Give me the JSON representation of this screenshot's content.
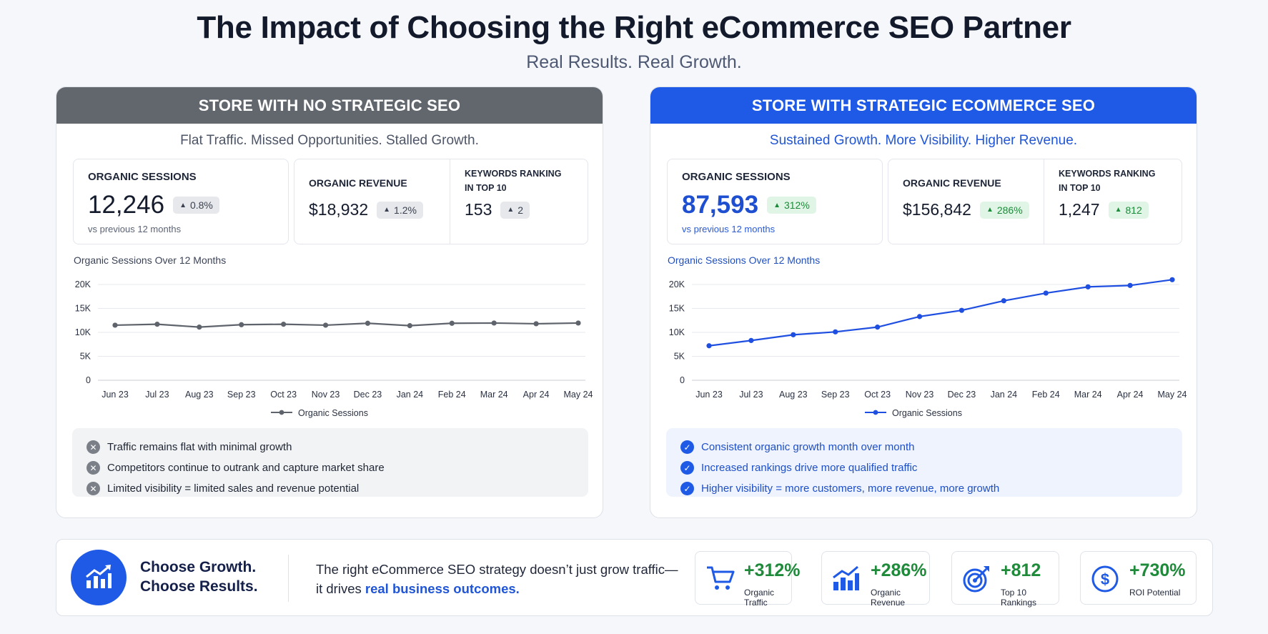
{
  "title": "The Impact of Choosing the Right eCommerce SEO Partner",
  "subtitle": "Real Results. Real Growth.",
  "left": {
    "header": "STORE WITH NO STRATEGIC SEO",
    "tagline": "Flat Traffic. Missed Opportunities. Stalled Growth.",
    "kpis": {
      "sessions": {
        "label": "ORGANIC SESSIONS",
        "value": "12,246",
        "change": "0.8%",
        "note": "vs previous 12 months"
      },
      "revenue": {
        "label": "ORGANIC REVENUE",
        "value": "$18,932",
        "change": "1.2%"
      },
      "keywords": {
        "label_line1": "KEYWORDS RANKING",
        "label_line2": "IN TOP 10",
        "value": "153",
        "change": "2"
      }
    },
    "chart_title": "Organic Sessions Over 12 Months",
    "legend": "Organic Sessions",
    "notes": [
      "Traffic remains flat with minimal growth",
      "Competitors continue to outrank and capture market share",
      "Limited visibility = limited sales and revenue potential"
    ]
  },
  "right": {
    "header": "STORE WITH STRATEGIC ECOMMERCE SEO",
    "tagline": "Sustained Growth. More Visibility. Higher Revenue.",
    "kpis": {
      "sessions": {
        "label": "ORGANIC SESSIONS",
        "value": "87,593",
        "change": "312%",
        "note": "vs previous 12 months"
      },
      "revenue": {
        "label": "ORGANIC REVENUE",
        "value": "$156,842",
        "change": "286%"
      },
      "keywords": {
        "label_line1": "KEYWORDS RANKING",
        "label_line2": "IN TOP 10",
        "value": "1,247",
        "change": "812"
      }
    },
    "chart_title": "Organic Sessions Over 12 Months",
    "legend": "Organic Sessions",
    "notes": [
      "Consistent organic growth month over month",
      "Increased rankings drive more qualified traffic",
      "Higher visibility = more customers, more revenue, more growth"
    ]
  },
  "footer": {
    "headline_1": "Choose Growth.",
    "headline_2": "Choose Results.",
    "pitch_1": "The right eCommerce SEO strategy doesn’t just grow traffic—",
    "pitch_2a": "it drives ",
    "pitch_2b": "real business outcomes.",
    "stats": [
      {
        "value": "+312%",
        "label": "Organic Traffic",
        "icon": "cart-icon"
      },
      {
        "value": "+286%",
        "label": "Organic Revenue",
        "icon": "bar-chart-growth-icon"
      },
      {
        "value": "+812",
        "label": "Top 10 Rankings",
        "icon": "target-icon"
      },
      {
        "value": "+730%",
        "label": "ROI Potential",
        "icon": "dollar-circle-icon"
      }
    ]
  },
  "colors": {
    "gray_series": "#5f646c",
    "blue_series": "#1f4fe0",
    "blue_accent": "#1f5ae6",
    "green_stat": "#1e8a3a"
  },
  "chart_data": [
    {
      "type": "line",
      "title": "Organic Sessions Over 12 Months",
      "x": [
        "Jun 23",
        "Jul 23",
        "Aug 23",
        "Sep 23",
        "Oct 23",
        "Nov 23",
        "Dec 23",
        "Jan 24",
        "Feb 24",
        "Mar 24",
        "Apr 24",
        "May 24"
      ],
      "series": [
        {
          "name": "Organic Sessions",
          "values": [
            11500,
            11700,
            11100,
            11600,
            11700,
            11500,
            11900,
            11400,
            11900,
            11950,
            11800,
            11950
          ]
        }
      ],
      "yticks": [
        "0",
        "5K",
        "10K",
        "15K",
        "20K"
      ],
      "ylim": [
        0,
        20000
      ],
      "grid": true,
      "legend": "bottom-center"
    },
    {
      "type": "line",
      "title": "Organic Sessions Over 12 Months",
      "x": [
        "Jun 23",
        "Jul 23",
        "Aug 23",
        "Sep 23",
        "Oct 23",
        "Nov 23",
        "Dec 23",
        "Jan 24",
        "Feb 24",
        "Mar 24",
        "Apr 24",
        "May 24"
      ],
      "series": [
        {
          "name": "Organic Sessions",
          "values": [
            7200,
            8300,
            9500,
            10100,
            11100,
            13300,
            14600,
            16600,
            18200,
            19500,
            19800,
            21000
          ]
        }
      ],
      "yticks": [
        "0",
        "5K",
        "10K",
        "15K",
        "20K"
      ],
      "ylim": [
        0,
        20000
      ],
      "grid": true,
      "legend": "bottom-center"
    }
  ]
}
